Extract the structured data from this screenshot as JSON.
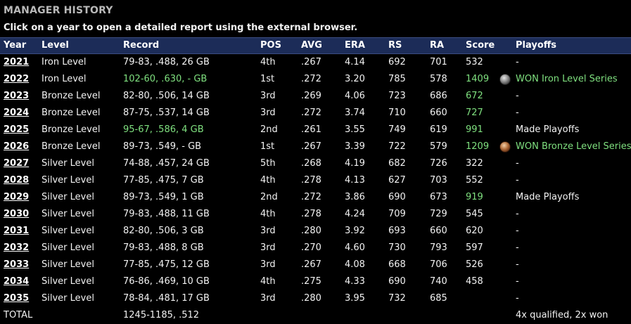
{
  "title": "MANAGER HISTORY",
  "subtitle": "Click on a year to open a detailed report using the external browser.",
  "headers": {
    "year": "Year",
    "level": "Level",
    "record": "Record",
    "pos": "POS",
    "avg": "AVG",
    "era": "ERA",
    "rs": "RS",
    "ra": "RA",
    "score": "Score",
    "playoffs": "Playoffs"
  },
  "colors": {
    "header_bg": "#1c2c58",
    "highlight": "#7fe07f"
  },
  "rows": [
    {
      "year": "2021",
      "level": "Iron Level",
      "record": "79-83, .488, 26 GB",
      "pos": "4th",
      "avg": ".267",
      "era": "4.14",
      "rs": "692",
      "ra": "701",
      "score": "532",
      "playoffs": "-"
    },
    {
      "year": "2022",
      "level": "Iron Level",
      "record": "102-60, .630, - GB",
      "pos": "1st",
      "avg": ".272",
      "era": "3.20",
      "rs": "785",
      "ra": "578",
      "score": "1409",
      "playoffs": "WON Iron Level Series"
    },
    {
      "year": "2023",
      "level": "Bronze Level",
      "record": "82-80, .506, 14 GB",
      "pos": "3rd",
      "avg": ".269",
      "era": "4.06",
      "rs": "723",
      "ra": "686",
      "score": "672",
      "playoffs": "-"
    },
    {
      "year": "2024",
      "level": "Bronze Level",
      "record": "87-75, .537, 14 GB",
      "pos": "3rd",
      "avg": ".272",
      "era": "3.74",
      "rs": "710",
      "ra": "660",
      "score": "727",
      "playoffs": "-"
    },
    {
      "year": "2025",
      "level": "Bronze Level",
      "record": "95-67, .586, 4 GB",
      "pos": "2nd",
      "avg": ".261",
      "era": "3.55",
      "rs": "749",
      "ra": "619",
      "score": "991",
      "playoffs": "Made Playoffs"
    },
    {
      "year": "2026",
      "level": "Bronze Level",
      "record": "89-73, .549, - GB",
      "pos": "1st",
      "avg": ".267",
      "era": "3.39",
      "rs": "722",
      "ra": "579",
      "score": "1209",
      "playoffs": "WON Bronze Level Series"
    },
    {
      "year": "2027",
      "level": "Silver Level",
      "record": "74-88, .457, 24 GB",
      "pos": "5th",
      "avg": ".268",
      "era": "4.19",
      "rs": "682",
      "ra": "726",
      "score": "322",
      "playoffs": "-"
    },
    {
      "year": "2028",
      "level": "Silver Level",
      "record": "77-85, .475, 7 GB",
      "pos": "4th",
      "avg": ".278",
      "era": "4.13",
      "rs": "627",
      "ra": "703",
      "score": "552",
      "playoffs": "-"
    },
    {
      "year": "2029",
      "level": "Silver Level",
      "record": "89-73, .549, 1 GB",
      "pos": "2nd",
      "avg": ".272",
      "era": "3.86",
      "rs": "690",
      "ra": "673",
      "score": "919",
      "playoffs": "Made Playoffs"
    },
    {
      "year": "2030",
      "level": "Silver Level",
      "record": "79-83, .488, 11 GB",
      "pos": "4th",
      "avg": ".278",
      "era": "4.24",
      "rs": "709",
      "ra": "729",
      "score": "545",
      "playoffs": "-"
    },
    {
      "year": "2031",
      "level": "Silver Level",
      "record": "82-80, .506, 3 GB",
      "pos": "3rd",
      "avg": ".280",
      "era": "3.92",
      "rs": "693",
      "ra": "660",
      "score": "620",
      "playoffs": "-"
    },
    {
      "year": "2032",
      "level": "Silver Level",
      "record": "79-83, .488, 8 GB",
      "pos": "3rd",
      "avg": ".270",
      "era": "4.60",
      "rs": "730",
      "ra": "793",
      "score": "597",
      "playoffs": "-"
    },
    {
      "year": "2033",
      "level": "Silver Level",
      "record": "77-85, .475, 12 GB",
      "pos": "3rd",
      "avg": ".267",
      "era": "4.08",
      "rs": "668",
      "ra": "706",
      "score": "526",
      "playoffs": "-"
    },
    {
      "year": "2034",
      "level": "Silver Level",
      "record": "76-86, .469, 10 GB",
      "pos": "4th",
      "avg": ".275",
      "era": "4.33",
      "rs": "690",
      "ra": "740",
      "score": "458",
      "playoffs": "-"
    },
    {
      "year": "2035",
      "level": "Silver Level",
      "record": "78-84, .481, 17 GB",
      "pos": "3rd",
      "avg": ".280",
      "era": "3.95",
      "rs": "732",
      "ra": "685",
      "score": "",
      "playoffs": "-"
    }
  ],
  "total": {
    "label": "TOTAL",
    "record": "1245-1185, .512",
    "playoffs": "4x qualified, 2x won"
  }
}
